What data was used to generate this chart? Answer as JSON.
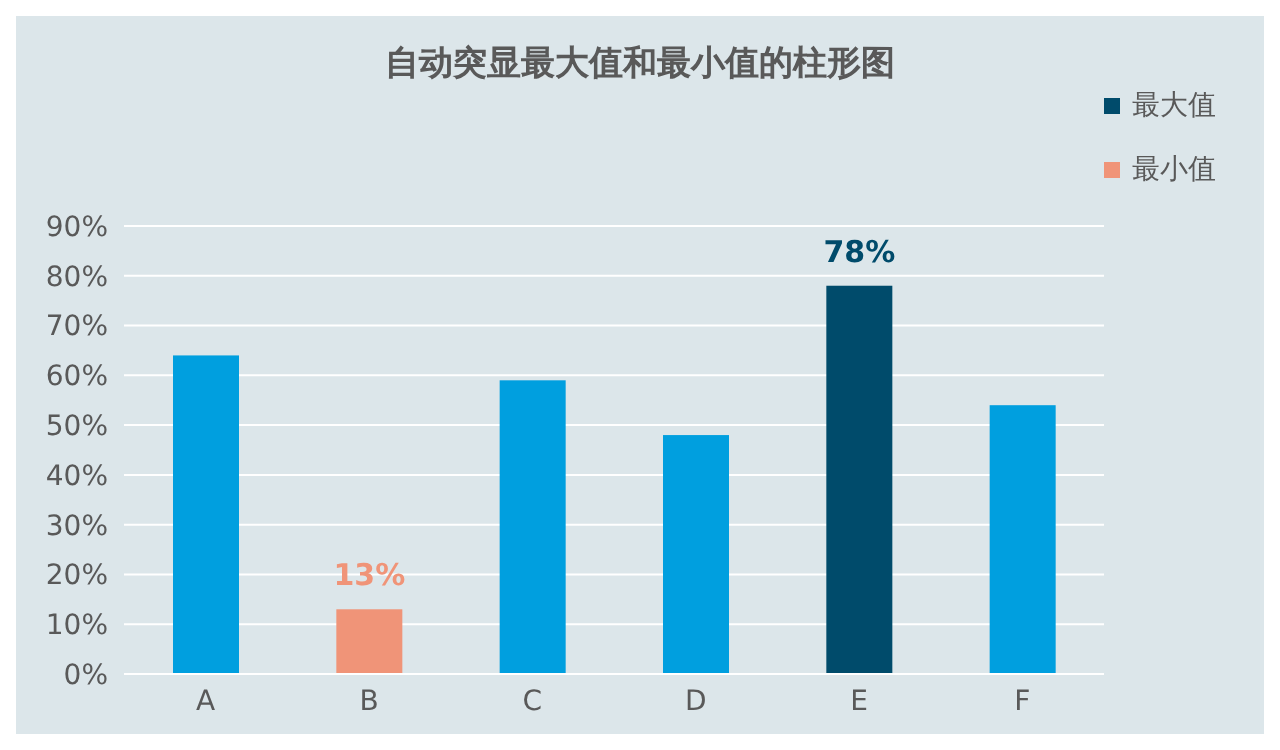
{
  "chart_data": {
    "type": "bar",
    "title": "自动突显最大值和最小值的柱形图",
    "categories": [
      "A",
      "B",
      "C",
      "D",
      "E",
      "F"
    ],
    "stacked": true,
    "series": [
      {
        "color": "#009fdf",
        "values": [
          64,
          null,
          59,
          48,
          null,
          54
        ]
      },
      {
        "name": "最大值",
        "color": "#004b6b",
        "values": [
          null,
          null,
          null,
          null,
          78,
          null
        ],
        "value_labels": [
          null,
          null,
          null,
          null,
          "78%",
          null
        ]
      },
      {
        "name": "最小值",
        "color": "#f09478",
        "values": [
          null,
          13,
          null,
          null,
          null,
          null
        ],
        "value_labels": [
          null,
          "13%",
          null,
          null,
          null,
          null
        ]
      }
    ],
    "ylim": [
      0,
      90
    ],
    "yticks": [
      {
        "value": 0,
        "label": "0%"
      },
      {
        "value": 10,
        "label": "10%"
      },
      {
        "value": 20,
        "label": "20%"
      },
      {
        "value": 30,
        "label": "30%"
      },
      {
        "value": 40,
        "label": "40%"
      },
      {
        "value": 50,
        "label": "50%"
      },
      {
        "value": 60,
        "label": "60%"
      },
      {
        "value": 70,
        "label": "70%"
      },
      {
        "value": 80,
        "label": "80%"
      },
      {
        "value": 90,
        "label": "90%"
      }
    ],
    "grid": "y",
    "legend": "top right"
  }
}
